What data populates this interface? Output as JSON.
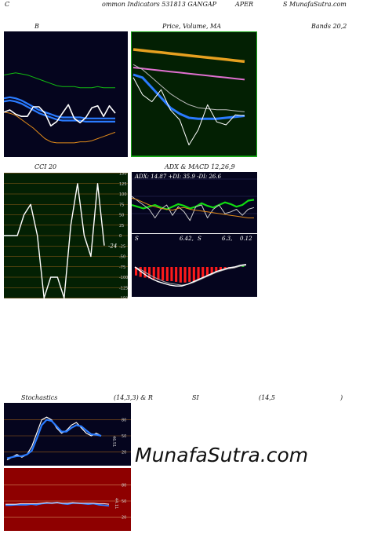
{
  "header": {
    "left": "C",
    "t1": "ommon  Indicators 531813 GANGAP",
    "t2": "APER",
    "t3": "S MunafaSutra.com"
  },
  "titles": {
    "bollinger_b": "B",
    "price_ma": "Price,  Volume,  MA",
    "bands": "Bands 20,2",
    "cci": "CCI 20",
    "adx_macd": "ADX  & MACD 12,26,9",
    "stoch_a": "Stochastics",
    "stoch_b": "(14,3,3) & R",
    "stoch_c": "SI",
    "stoch_d": "(14,5",
    "stoch_e": ")"
  },
  "watermark": "MunafaSutra.com",
  "colors": {
    "dark_blue_bg": "#05051e",
    "dark_green_bg": "#032003",
    "dark_red_bg": "#8e0000",
    "grid_orange": "#9a5f1a",
    "blue": "#2a7bff",
    "green": "#11cc11",
    "orange": "#e08a1a",
    "white": "#ffffff",
    "red": "#ff1a1a"
  },
  "chart_data": [
    {
      "id": "bollinger",
      "type": "line",
      "series": [
        {
          "key": "upper",
          "color": "#11bb11",
          "values": [
            70,
            71,
            72,
            71,
            70,
            68,
            66,
            64,
            62,
            60,
            59,
            59,
            59,
            58,
            58,
            58,
            59,
            58,
            58,
            58
          ]
        },
        {
          "key": "middle_a",
          "color": "#2a7bff",
          "values": [
            48,
            49,
            48,
            46,
            43,
            40,
            37,
            35,
            33,
            31,
            30,
            30,
            30,
            30,
            29,
            29,
            29,
            29,
            29,
            29
          ]
        },
        {
          "key": "middle_b",
          "color": "#2a7bff",
          "values": [
            45,
            46,
            45,
            43,
            40,
            37,
            34,
            32,
            30,
            28,
            27,
            27,
            27,
            27,
            26,
            26,
            26,
            26,
            26,
            26
          ]
        },
        {
          "key": "lower",
          "color": "#e08a1a",
          "values": [
            35,
            34,
            32,
            28,
            24,
            20,
            15,
            10,
            7,
            6,
            6,
            6,
            6,
            7,
            7,
            8,
            10,
            12,
            14,
            16
          ]
        },
        {
          "key": "close",
          "color": "#ffffff",
          "values": [
            35,
            37,
            33,
            31,
            31,
            40,
            40,
            34,
            22,
            26,
            34,
            42,
            29,
            25,
            30,
            39,
            41,
            31,
            41,
            34
          ]
        }
      ]
    },
    {
      "id": "price_ma",
      "type": "line",
      "series": [
        {
          "key": "ma_orange",
          "color": "#e6a020",
          "values": [
            100,
            99,
            98,
            97,
            96,
            95,
            94,
            93,
            92,
            91,
            90,
            89,
            88
          ]
        },
        {
          "key": "ma_pink",
          "color": "#e070d0",
          "values": [
            82,
            81,
            80,
            79,
            78,
            77,
            76,
            75,
            74,
            73,
            72,
            71,
            70
          ]
        },
        {
          "key": "ma_grey",
          "color": "#bbbbbb",
          "values": [
            85,
            80,
            72,
            64,
            56,
            50,
            45,
            42,
            41,
            40,
            40,
            39,
            38
          ]
        },
        {
          "key": "ma_blue",
          "color": "#2a7bff",
          "values": [
            75,
            72,
            62,
            52,
            42,
            36,
            32,
            31,
            31,
            31,
            32,
            33,
            34
          ]
        },
        {
          "key": "close",
          "color": "#ffffff",
          "values": [
            72,
            55,
            48,
            60,
            40,
            30,
            5,
            20,
            45,
            28,
            25,
            35,
            34
          ]
        }
      ]
    },
    {
      "id": "cci",
      "type": "line",
      "ticks": [
        175,
        150,
        125,
        100,
        75,
        50,
        25,
        0,
        -25,
        -50,
        -75,
        -100,
        -125,
        -150,
        -175
      ],
      "values": [
        0,
        0,
        0,
        50,
        75,
        0,
        -150,
        -100,
        -100,
        -150,
        25,
        125,
        0,
        -50,
        125,
        -24
      ],
      "last_label": "-24"
    },
    {
      "id": "adx",
      "type": "line",
      "text": "ADX: 14.87  +DI: 35.9 -DI: 26.6",
      "series": [
        {
          "key": "plus_di",
          "color": "#11dd11",
          "values": [
            30,
            28,
            26,
            28,
            30,
            27,
            25,
            28,
            31,
            29,
            26,
            28,
            32,
            29,
            27,
            30,
            33,
            31,
            28,
            30,
            35,
            36
          ]
        },
        {
          "key": "minus_di",
          "color": "#cccccc",
          "values": [
            40,
            35,
            30,
            25,
            15,
            25,
            30,
            18,
            28,
            22,
            12,
            28,
            30,
            15,
            25,
            30,
            20,
            22,
            25,
            18,
            25,
            27
          ]
        },
        {
          "key": "adx",
          "color": "#e08a1a",
          "values": [
            38,
            36,
            33,
            30,
            28,
            26,
            25,
            24,
            26,
            27,
            25,
            24,
            23,
            22,
            21,
            20,
            19,
            18,
            17,
            16,
            15,
            15
          ]
        }
      ]
    },
    {
      "id": "macd",
      "type": "bar",
      "labels": [
        "S",
        "6.42,",
        "S",
        "6.3,",
        "0.12"
      ],
      "hist": [
        -12,
        -14,
        -15,
        -16,
        -17,
        -18,
        -19,
        -20,
        -20,
        -21,
        -22,
        -22,
        -21,
        -20,
        -18,
        -16,
        -13,
        -10,
        -8,
        -5,
        -3,
        -2,
        -1,
        1,
        2
      ],
      "macd": [
        0,
        -5,
        -10,
        -14,
        -17,
        -19,
        -21,
        -22,
        -22,
        -20,
        -17,
        -14,
        -11,
        -8,
        -5,
        -3,
        -1,
        0,
        2,
        3
      ],
      "signal": [
        0,
        -3,
        -7,
        -11,
        -14,
        -17,
        -19,
        -20,
        -21,
        -20,
        -18,
        -15,
        -12,
        -9,
        -6,
        -4,
        -2,
        -1,
        1,
        2
      ]
    },
    {
      "id": "stoch",
      "type": "line",
      "ticks": [
        80,
        50,
        20
      ],
      "label": "46.51",
      "series": [
        {
          "key": "k",
          "color": "#ffffff",
          "values": [
            5,
            10,
            15,
            10,
            15,
            30,
            55,
            80,
            85,
            80,
            65,
            55,
            60,
            70,
            75,
            65,
            55,
            50,
            55,
            50
          ]
        },
        {
          "key": "d",
          "color": "#2a7bff",
          "values": [
            8,
            10,
            12,
            12,
            15,
            22,
            45,
            70,
            80,
            78,
            68,
            58,
            58,
            65,
            70,
            68,
            60,
            53,
            52,
            50
          ]
        }
      ]
    },
    {
      "id": "rsi",
      "type": "line",
      "ticks": [
        80,
        50,
        20
      ],
      "label": "44.11",
      "series": [
        {
          "key": "rsi",
          "color": "#2a7bff",
          "values": [
            42,
            42,
            43,
            43,
            43,
            44,
            43,
            45,
            46,
            46,
            47,
            45,
            44,
            46,
            46,
            45,
            44,
            45,
            43,
            42,
            41
          ]
        },
        {
          "key": "rsi_w",
          "color": "#ffffff",
          "values": [
            44,
            44,
            44,
            45,
            45,
            45,
            45,
            46,
            47,
            46,
            47,
            46,
            46,
            47,
            46,
            46,
            46,
            46,
            45,
            45,
            44
          ]
        }
      ]
    }
  ]
}
